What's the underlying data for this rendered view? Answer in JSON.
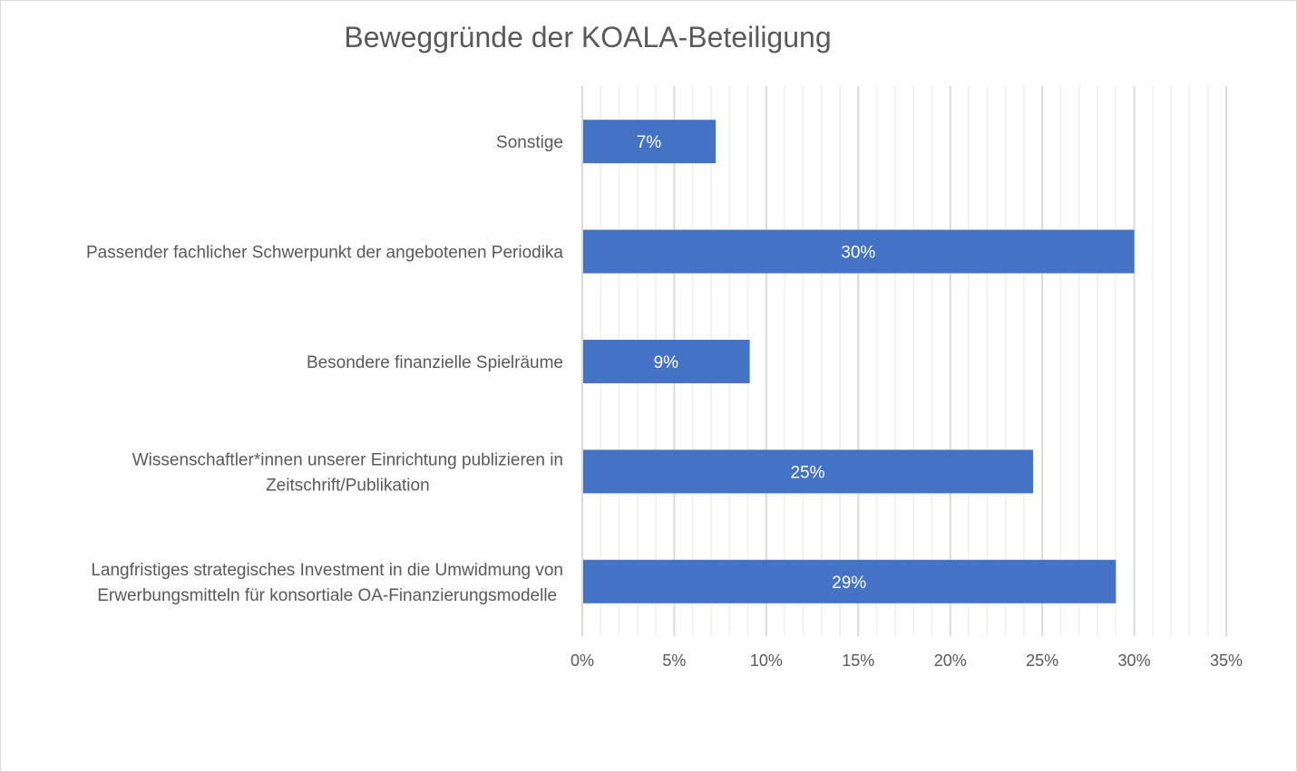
{
  "chart_data": {
    "type": "bar",
    "orientation": "horizontal",
    "title": "Beweggründe der KOALA-Beteiligung",
    "xlabel": "",
    "ylabel": "",
    "categories": [
      [
        "Sonstige"
      ],
      [
        "Passender fachlicher Schwerpunkt der angebotenen Periodika"
      ],
      [
        "Besondere finanzielle Spielräume"
      ],
      [
        "Wissenschaftler*innen unserer Einrichtung publizieren in",
        "Zeitschrift/Publikation"
      ],
      [
        "Langfristiges strategisches Investment in die Umwidmung von",
        "Erwerbungsmitteln für konsortiale OA-Finanzierungsmodelle"
      ]
    ],
    "values": [
      7.25,
      30.0,
      9.1,
      24.5,
      29.0
    ],
    "data_labels": [
      "7%",
      "30%",
      "9%",
      "25%",
      "29%"
    ],
    "xlim": [
      0,
      35
    ],
    "x_ticks": [
      0,
      5,
      10,
      15,
      20,
      25,
      30,
      35
    ],
    "x_tick_labels": [
      "0%",
      "5%",
      "10%",
      "15%",
      "20%",
      "25%",
      "30%",
      "35%"
    ],
    "minor_grid_step": 1,
    "grid": true,
    "legend": "none",
    "bar_color": "#4472C4",
    "major_grid_color": "#D9D9D9",
    "minor_grid_color": "#F2F2F2"
  }
}
